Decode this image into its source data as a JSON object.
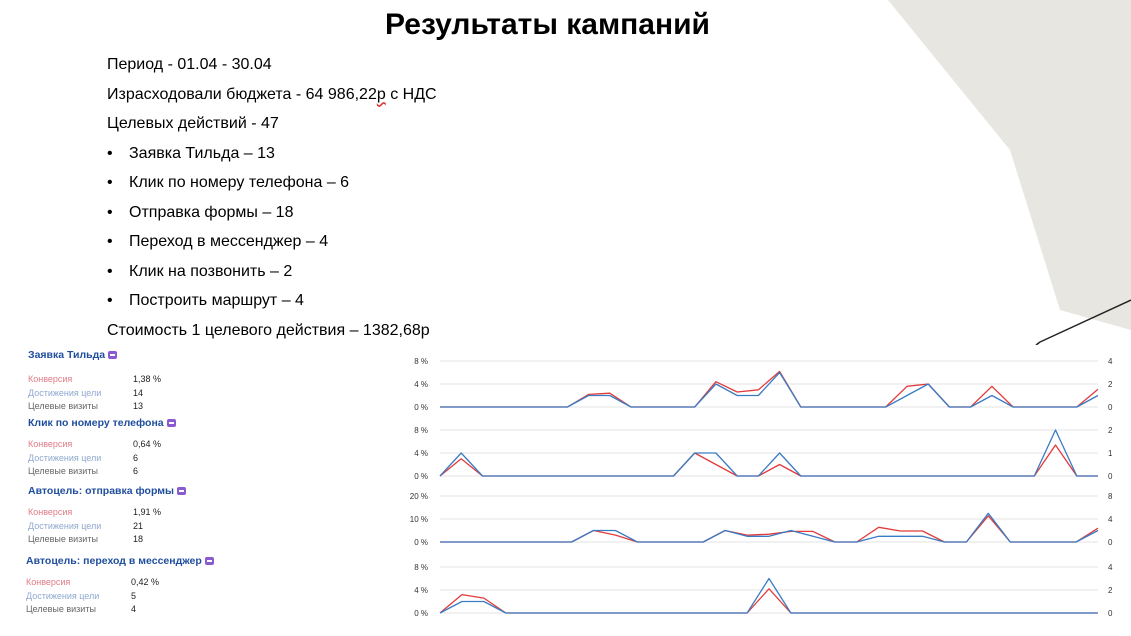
{
  "slide": {
    "title": "Результаты кампаний",
    "period": "Период - 01.04 - 30.04",
    "budget_prefix": "Израсходовали бюджета - 64 986,22",
    "budget_underlined": "р",
    "budget_suffix": " с НДС",
    "target_actions": "Целевых действий - 47",
    "bullets": [
      "Заявка Тильда – 13",
      "Клик по номеру телефона – 6",
      "Отправка формы – 18",
      "Переход в мессенджер – 4",
      "Клик на позвонить – 2",
      "Построить маршрут – 4"
    ],
    "cost_per_action": "Стоимость 1 целевого действия – 1382,68р"
  },
  "stat_labels": {
    "conversion": "Конверсия",
    "goal_reaches": "Достижения цели",
    "target_visits": "Целевые визиты"
  },
  "colors": {
    "conversion_line": "#e23b3b",
    "visits_line": "#3a7cc4",
    "goal_title": "#1f4e9e",
    "badge": "#8a5ad0"
  },
  "goals": [
    {
      "title": "Заявка Тильда",
      "conversion": "1,38 %",
      "reaches": "14",
      "visits": "13"
    },
    {
      "title": "Клик по номеру телефона",
      "conversion": "0,64 %",
      "reaches": "6",
      "visits": "6"
    },
    {
      "title": "Автоцель: отправка формы",
      "conversion": "1,91 %",
      "reaches": "21",
      "visits": "18"
    },
    {
      "title": "Автоцель: переход в мессенджер",
      "conversion": "0,42 %",
      "reaches": "5",
      "visits": "4"
    }
  ],
  "chart_data": [
    {
      "type": "line",
      "left_ticks": [
        "8 %",
        "4 %",
        "0 %"
      ],
      "right_ticks": [
        "4",
        "2",
        "0"
      ],
      "ylim_left": [
        0,
        8
      ],
      "ylim_right": [
        0,
        4
      ],
      "series": [
        {
          "values": [
            0,
            0,
            0,
            0,
            0,
            0,
            0,
            2.2,
            2.4,
            0,
            0,
            0,
            0,
            4.4,
            2.6,
            3,
            6.2,
            0,
            0,
            0,
            0,
            0,
            3.6,
            4,
            0,
            0,
            3.6,
            0,
            0,
            0,
            0,
            3.1
          ]
        },
        {
          "values": [
            0,
            0,
            0,
            0,
            0,
            0,
            0,
            1,
            1,
            0,
            0,
            0,
            0,
            2,
            1,
            1,
            3,
            0,
            0,
            0,
            0,
            0,
            1,
            2,
            0,
            0,
            1,
            0,
            0,
            0,
            0,
            1
          ]
        }
      ]
    },
    {
      "type": "line",
      "left_ticks": [
        "8 %",
        "4 %",
        "0 %"
      ],
      "right_ticks": [
        "2",
        "1",
        "0"
      ],
      "ylim_left": [
        0,
        8
      ],
      "ylim_right": [
        0,
        2
      ],
      "series": [
        {
          "values": [
            0,
            3,
            0,
            0,
            0,
            0,
            0,
            0,
            0,
            0,
            0,
            0,
            4,
            2,
            0,
            0,
            2,
            0,
            0,
            0,
            0,
            0,
            0,
            0,
            0,
            0,
            0,
            0,
            0,
            5.4,
            0,
            0
          ]
        },
        {
          "values": [
            0,
            1,
            0,
            0,
            0,
            0,
            0,
            0,
            0,
            0,
            0,
            0,
            1,
            1,
            0,
            0,
            1,
            0,
            0,
            0,
            0,
            0,
            0,
            0,
            0,
            0,
            0,
            0,
            0,
            2,
            0,
            0
          ]
        }
      ]
    },
    {
      "type": "line",
      "left_ticks": [
        "20 %",
        "10 %",
        "0 %"
      ],
      "right_ticks": [
        "8",
        "4",
        "0"
      ],
      "ylim_left": [
        0,
        20
      ],
      "ylim_right": [
        0,
        8
      ],
      "series": [
        {
          "values": [
            0,
            0,
            0,
            0,
            0,
            0,
            0,
            5,
            3,
            0,
            0,
            0,
            0,
            5,
            3,
            3.4,
            4.6,
            4.6,
            0,
            0,
            6.4,
            4.8,
            4.8,
            0,
            0,
            11.4,
            0,
            0,
            0,
            0,
            6
          ]
        },
        {
          "values": [
            0,
            0,
            0,
            0,
            0,
            0,
            0,
            2,
            2,
            0,
            0,
            0,
            0,
            2,
            1,
            1,
            2,
            1,
            0,
            0,
            1,
            1,
            1,
            0,
            0,
            5,
            0,
            0,
            0,
            0,
            2
          ]
        }
      ]
    },
    {
      "type": "line",
      "left_ticks": [
        "8 %",
        "4 %",
        "0 %"
      ],
      "right_ticks": [
        "4",
        "2",
        "0"
      ],
      "ylim_left": [
        0,
        8
      ],
      "ylim_right": [
        0,
        4
      ],
      "series": [
        {
          "values": [
            0,
            3.2,
            2.6,
            0,
            0,
            0,
            0,
            0,
            0,
            0,
            0,
            0,
            0,
            0,
            0,
            4.2,
            0,
            0,
            0,
            0,
            0,
            0,
            0,
            0,
            0,
            0,
            0,
            0,
            0,
            0,
            0
          ]
        },
        {
          "values": [
            0,
            1,
            1,
            0,
            0,
            0,
            0,
            0,
            0,
            0,
            0,
            0,
            0,
            0,
            0,
            3,
            0,
            0,
            0,
            0,
            0,
            0,
            0,
            0,
            0,
            0,
            0,
            0,
            0,
            0,
            0
          ]
        }
      ]
    }
  ]
}
